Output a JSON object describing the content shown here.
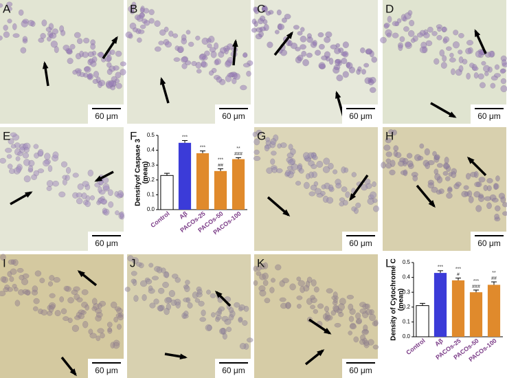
{
  "panels": [
    {
      "label": "A",
      "scale_bar": "60 μm"
    },
    {
      "label": "B",
      "scale_bar": "60 μm"
    },
    {
      "label": "C",
      "scale_bar": "60 μm"
    },
    {
      "label": "D",
      "scale_bar": "60 μm"
    },
    {
      "label": "E",
      "scale_bar": "60 μm"
    },
    {
      "label": "G",
      "scale_bar": "60 μm"
    },
    {
      "label": "H",
      "scale_bar": "60 μm"
    },
    {
      "label": "I",
      "scale_bar": "60 μm"
    },
    {
      "label": "J",
      "scale_bar": "60 μm"
    },
    {
      "label": "K",
      "scale_bar": "60 μm"
    }
  ],
  "chart_data": [
    {
      "type": "bar",
      "panel_label": "F",
      "y_label": [
        "Densityof Caspase 3",
        "(mean)"
      ],
      "categories": [
        "Control",
        "Aβ",
        "PACOs-25",
        "PACOs-50",
        "PACOs-100"
      ],
      "values": [
        0.23,
        0.45,
        0.38,
        0.26,
        0.34
      ],
      "errors": [
        0.015,
        0.015,
        0.015,
        0.015,
        0.01
      ],
      "colors": [
        "#ffffff",
        "#3b3bd8",
        "#e08a2c",
        "#e08a2c",
        "#e08a2c"
      ],
      "annotations": [
        [],
        [
          "***"
        ],
        [
          "***"
        ],
        [
          "***",
          "##"
        ],
        [
          "**",
          "###"
        ]
      ],
      "ylim": [
        0,
        0.5
      ],
      "yticks": [
        {
          "value": 0,
          "label": "0.0"
        },
        0.1,
        0.2,
        0.3,
        0.4,
        0.5
      ]
    },
    {
      "type": "bar",
      "panel_label": "L",
      "y_label": [
        "Density of Cytochrome C",
        "(mean)"
      ],
      "categories": [
        "Control",
        "Aβ",
        "PACOs-25",
        "PACOs-50",
        "PACOs-100"
      ],
      "values": [
        0.21,
        0.43,
        0.38,
        0.3,
        0.35
      ],
      "errors": [
        0.015,
        0.015,
        0.015,
        0.015,
        0.02
      ],
      "colors": [
        "#ffffff",
        "#3b3bd8",
        "#e08a2c",
        "#e08a2c",
        "#e08a2c"
      ],
      "annotations": [
        [],
        [
          "***"
        ],
        [
          "***",
          "#"
        ],
        [
          "***",
          "###"
        ],
        [
          "**",
          "##"
        ]
      ],
      "ylim": [
        0,
        0.5
      ],
      "yticks": [
        {
          "value": 0,
          "label": "0.0"
        },
        0.1,
        0.2,
        0.3,
        0.4,
        0.5
      ]
    }
  ]
}
